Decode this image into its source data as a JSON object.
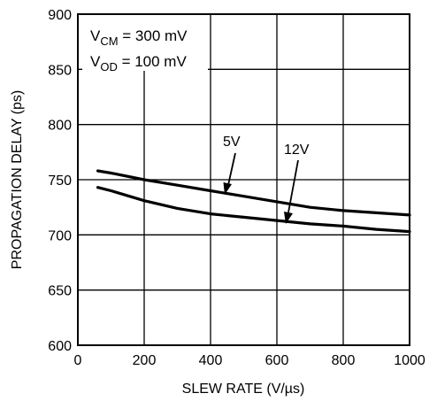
{
  "chart_data": {
    "type": "line",
    "xlabel": "SLEW RATE (V/µs)",
    "ylabel": "PROPAGATION DELAY (ps)",
    "xlim": [
      0,
      1000
    ],
    "ylim": [
      600,
      900
    ],
    "x_ticks": [
      0,
      200,
      400,
      600,
      800,
      1000
    ],
    "y_ticks": [
      600,
      650,
      700,
      750,
      800,
      850,
      900
    ],
    "x_tick_labels": [
      "0",
      "200",
      "400",
      "600",
      "800",
      "1000"
    ],
    "y_tick_labels": [
      "600",
      "650",
      "700",
      "750",
      "800",
      "850",
      "900"
    ],
    "grid": true,
    "conditions": [
      {
        "main": "V",
        "sub": "CM",
        "value": " = 300 mV"
      },
      {
        "main": "V",
        "sub": "OD",
        "value": " = 100 mV"
      }
    ],
    "series": [
      {
        "name": "5V",
        "x": [
          60,
          100,
          200,
          300,
          400,
          500,
          600,
          700,
          800,
          900,
          1000
        ],
        "y": [
          758,
          756,
          750,
          745,
          740,
          735,
          730,
          725,
          722,
          720,
          718
        ]
      },
      {
        "name": "12V",
        "x": [
          60,
          100,
          200,
          300,
          400,
          500,
          600,
          700,
          800,
          900,
          1000
        ],
        "y": [
          743,
          740,
          731,
          724,
          719,
          716,
          713,
          710,
          708,
          705,
          703
        ]
      }
    ]
  }
}
